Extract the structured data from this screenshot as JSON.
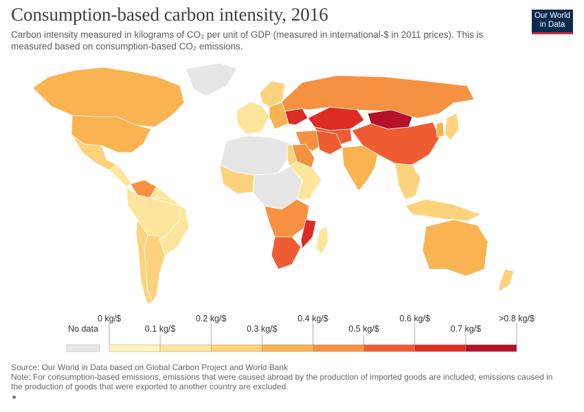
{
  "header": {
    "title": "Consumption-based carbon intensity, 2016",
    "subtitle": "Carbon intensity measured in kilograms of CO₂ per unit of GDP (measured in international-$ in 2011 prices). This is measured based on consumption-based CO₂ emissions.",
    "logo_line1": "Our World",
    "logo_line2": "in Data"
  },
  "colors": {
    "no_data": "#e6e6e6",
    "bins": [
      "#fef3b9",
      "#fde69b",
      "#fcd37c",
      "#f9b350",
      "#f59140",
      "#ef5c31",
      "#dc2c23",
      "#b6112a"
    ],
    "ocean": "#ffffff"
  },
  "chart_data": {
    "type": "map",
    "year": 2016,
    "unit": "kg/$",
    "no_data_label": "No data",
    "legend_ticks": [
      "0 kg/$",
      "0.1 kg/$",
      "0.2 kg/$",
      "0.3 kg/$",
      "0.4 kg/$",
      "0.5 kg/$",
      "0.6 kg/$",
      "0.7 kg/$",
      ">0.8 kg/$"
    ],
    "bins": [
      [
        0,
        0.1
      ],
      [
        0.1,
        0.2
      ],
      [
        0.2,
        0.3
      ],
      [
        0.3,
        0.4
      ],
      [
        0.4,
        0.5
      ],
      [
        0.5,
        0.6
      ],
      [
        0.6,
        0.7
      ],
      [
        0.7,
        0.8
      ]
    ],
    "regions": [
      {
        "name": "Canada",
        "value": 0.35
      },
      {
        "name": "United States",
        "value": 0.33
      },
      {
        "name": "Mexico",
        "value": 0.2
      },
      {
        "name": "Central America",
        "value": 0.15
      },
      {
        "name": "Venezuela",
        "value": 0.45
      },
      {
        "name": "South America",
        "value": 0.14
      },
      {
        "name": "Brazil",
        "value": 0.14
      },
      {
        "name": "Argentina",
        "value": 0.25
      },
      {
        "name": "Chile",
        "value": 0.2
      },
      {
        "name": "Greenland",
        "value": null
      },
      {
        "name": "Western Europe",
        "value": 0.18
      },
      {
        "name": "Scandinavia",
        "value": 0.22
      },
      {
        "name": "Eastern Europe",
        "value": 0.3
      },
      {
        "name": "Ukraine",
        "value": 0.62
      },
      {
        "name": "Russia",
        "value": 0.48
      },
      {
        "name": "Kazakhstan",
        "value": 0.65
      },
      {
        "name": "Central Asia",
        "value": 0.55
      },
      {
        "name": "Mongolia",
        "value": 0.8
      },
      {
        "name": "China",
        "value": 0.58
      },
      {
        "name": "Middle East",
        "value": 0.45
      },
      {
        "name": "Saudi Arabia",
        "value": 0.42
      },
      {
        "name": "Iran",
        "value": 0.5
      },
      {
        "name": "India",
        "value": 0.3
      },
      {
        "name": "Southeast Asia",
        "value": 0.25
      },
      {
        "name": "Japan",
        "value": 0.2
      },
      {
        "name": "Korea",
        "value": 0.38
      },
      {
        "name": "Indonesia",
        "value": 0.28
      },
      {
        "name": "North Africa",
        "value": null
      },
      {
        "name": "Egypt",
        "value": 0.2
      },
      {
        "name": "Central Africa",
        "value": null
      },
      {
        "name": "East Africa",
        "value": 0.17
      },
      {
        "name": "West Africa",
        "value": 0.22
      },
      {
        "name": "Southern Africa",
        "value": 0.45
      },
      {
        "name": "South Africa",
        "value": 0.58
      },
      {
        "name": "Mozambique",
        "value": 0.62
      },
      {
        "name": "Madagascar",
        "value": 0.16
      },
      {
        "name": "Australia",
        "value": 0.33
      },
      {
        "name": "New Zealand",
        "value": 0.25
      }
    ]
  },
  "footer": {
    "source": "Source: Our World in Data based on Global Carbon Project and World Bank",
    "note": "Note: For consumption-based emissions, emissions that were caused abroad by the production of imported goods are included; emissions caused in the production of goods that were exported to another country are excluded."
  }
}
